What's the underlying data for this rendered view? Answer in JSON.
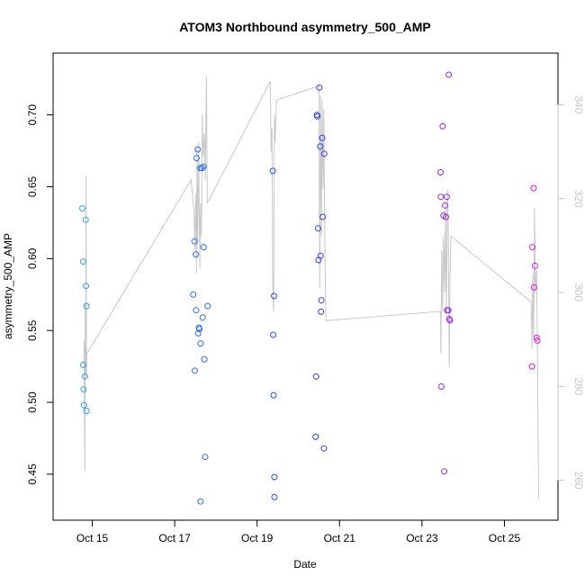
{
  "chart_data": {
    "type": "scatter",
    "title": "ATOM3 Northbound asymmetry_500_AMP",
    "xlabel": "Date",
    "ylabel": "asymmetry_500_AMP",
    "x_ticks": [
      {
        "day": 15,
        "label": "Oct 15"
      },
      {
        "day": 17,
        "label": "Oct 17"
      },
      {
        "day": 19,
        "label": "Oct 19"
      },
      {
        "day": 21,
        "label": "Oct 21"
      },
      {
        "day": 23,
        "label": "Oct 23"
      },
      {
        "day": 25,
        "label": "Oct 25"
      }
    ],
    "xlim": [
      14.05,
      26.3
    ],
    "ylim": [
      0.418,
      0.743
    ],
    "y_ticks": [
      "0.45",
      "0.50",
      "0.55",
      "0.60",
      "0.65",
      "0.70"
    ],
    "y2lim": [
      251.5,
      351
    ],
    "y2_ticks": [
      "260",
      "280",
      "300",
      "320",
      "340"
    ],
    "points": [
      {
        "x": 14.76,
        "y": 0.635
      },
      {
        "x": 14.78,
        "y": 0.598
      },
      {
        "x": 14.78,
        "y": 0.526
      },
      {
        "x": 14.79,
        "y": 0.509
      },
      {
        "x": 14.8,
        "y": 0.498
      },
      {
        "x": 14.82,
        "y": 0.518
      },
      {
        "x": 14.84,
        "y": 0.627
      },
      {
        "x": 14.85,
        "y": 0.581
      },
      {
        "x": 14.86,
        "y": 0.567
      },
      {
        "x": 14.86,
        "y": 0.494
      },
      {
        "x": 17.45,
        "y": 0.575
      },
      {
        "x": 17.48,
        "y": 0.612
      },
      {
        "x": 17.49,
        "y": 0.522
      },
      {
        "x": 17.51,
        "y": 0.603
      },
      {
        "x": 17.53,
        "y": 0.67
      },
      {
        "x": 17.52,
        "y": 0.564
      },
      {
        "x": 17.56,
        "y": 0.676
      },
      {
        "x": 17.57,
        "y": 0.548
      },
      {
        "x": 17.59,
        "y": 0.552
      },
      {
        "x": 17.6,
        "y": 0.551
      },
      {
        "x": 17.62,
        "y": 0.663
      },
      {
        "x": 17.63,
        "y": 0.541
      },
      {
        "x": 17.63,
        "y": 0.431
      },
      {
        "x": 17.66,
        "y": 0.663
      },
      {
        "x": 17.68,
        "y": 0.559
      },
      {
        "x": 17.7,
        "y": 0.608
      },
      {
        "x": 17.7,
        "y": 0.664
      },
      {
        "x": 17.72,
        "y": 0.53
      },
      {
        "x": 17.74,
        "y": 0.462
      },
      {
        "x": 17.8,
        "y": 0.567
      },
      {
        "x": 19.38,
        "y": 0.661
      },
      {
        "x": 19.39,
        "y": 0.547
      },
      {
        "x": 19.4,
        "y": 0.505
      },
      {
        "x": 19.41,
        "y": 0.574
      },
      {
        "x": 19.42,
        "y": 0.448
      },
      {
        "x": 19.42,
        "y": 0.434
      },
      {
        "x": 20.42,
        "y": 0.476
      },
      {
        "x": 20.43,
        "y": 0.518
      },
      {
        "x": 20.45,
        "y": 0.7
      },
      {
        "x": 20.46,
        "y": 0.699
      },
      {
        "x": 20.48,
        "y": 0.621
      },
      {
        "x": 20.49,
        "y": 0.599
      },
      {
        "x": 20.51,
        "y": 0.719
      },
      {
        "x": 20.53,
        "y": 0.678
      },
      {
        "x": 20.54,
        "y": 0.602
      },
      {
        "x": 20.55,
        "y": 0.563
      },
      {
        "x": 20.56,
        "y": 0.571
      },
      {
        "x": 20.58,
        "y": 0.684
      },
      {
        "x": 20.59,
        "y": 0.629
      },
      {
        "x": 20.63,
        "y": 0.673
      },
      {
        "x": 20.62,
        "y": 0.468
      },
      {
        "x": 23.45,
        "y": 0.66
      },
      {
        "x": 23.46,
        "y": 0.643
      },
      {
        "x": 23.47,
        "y": 0.511
      },
      {
        "x": 23.5,
        "y": 0.692
      },
      {
        "x": 23.52,
        "y": 0.63
      },
      {
        "x": 23.54,
        "y": 0.452
      },
      {
        "x": 23.56,
        "y": 0.637
      },
      {
        "x": 23.58,
        "y": 0.629
      },
      {
        "x": 23.6,
        "y": 0.643
      },
      {
        "x": 23.61,
        "y": 0.564
      },
      {
        "x": 23.64,
        "y": 0.564
      },
      {
        "x": 23.65,
        "y": 0.728
      },
      {
        "x": 23.66,
        "y": 0.558
      },
      {
        "x": 23.68,
        "y": 0.557
      },
      {
        "x": 25.67,
        "y": 0.525
      },
      {
        "x": 25.68,
        "y": 0.608
      },
      {
        "x": 25.71,
        "y": 0.649
      },
      {
        "x": 25.72,
        "y": 0.58
      },
      {
        "x": 25.74,
        "y": 0.595
      },
      {
        "x": 25.78,
        "y": 0.545
      },
      {
        "x": 25.8,
        "y": 0.543
      }
    ],
    "secondary_series_y2": [
      [
        14.82,
        282
      ],
      [
        14.8,
        290
      ],
      [
        14.82,
        262
      ],
      [
        14.83,
        298
      ],
      [
        14.84,
        282
      ],
      [
        14.85,
        325
      ],
      [
        14.86,
        282
      ],
      [
        14.87,
        287
      ],
      [
        17.4,
        324
      ],
      [
        17.47,
        317
      ],
      [
        17.49,
        309
      ],
      [
        17.51,
        321
      ],
      [
        17.53,
        304
      ],
      [
        17.54,
        331
      ],
      [
        17.56,
        310
      ],
      [
        17.58,
        332
      ],
      [
        17.61,
        305
      ],
      [
        17.63,
        319
      ],
      [
        17.65,
        312
      ],
      [
        17.67,
        338
      ],
      [
        17.69,
        329
      ],
      [
        17.72,
        334
      ],
      [
        17.74,
        324
      ],
      [
        17.77,
        346
      ],
      [
        17.79,
        319
      ],
      [
        19.32,
        345
      ],
      [
        19.34,
        330
      ],
      [
        19.36,
        335
      ],
      [
        19.38,
        300
      ],
      [
        19.4,
        296
      ],
      [
        19.42,
        338
      ],
      [
        19.44,
        332
      ],
      [
        19.47,
        341
      ],
      [
        20.5,
        344
      ],
      [
        20.52,
        301
      ],
      [
        20.54,
        342
      ],
      [
        20.56,
        312
      ],
      [
        20.58,
        341
      ],
      [
        20.6,
        322
      ],
      [
        20.62,
        339
      ],
      [
        20.64,
        312
      ],
      [
        20.67,
        294
      ],
      [
        23.45,
        296
      ],
      [
        23.46,
        287
      ],
      [
        23.48,
        309
      ],
      [
        23.5,
        296
      ],
      [
        23.52,
        312
      ],
      [
        23.55,
        300
      ],
      [
        23.57,
        319
      ],
      [
        23.59,
        296
      ],
      [
        23.62,
        322
      ],
      [
        23.64,
        312
      ],
      [
        23.66,
        284
      ],
      [
        23.68,
        302
      ],
      [
        23.7,
        312
      ],
      [
        25.65,
        298
      ],
      [
        25.67,
        288
      ],
      [
        25.69,
        304
      ],
      [
        25.71,
        290
      ],
      [
        25.73,
        318
      ],
      [
        25.75,
        300
      ],
      [
        25.78,
        305
      ],
      [
        25.8,
        289
      ],
      [
        25.83,
        256
      ]
    ],
    "colors": {
      "series_start": "#2ea3e6",
      "series_mid": "#2a3fe6",
      "series_end": "#e018e0",
      "secondary_line": "#c8c8c8",
      "right_axis": "#c8c8c8"
    }
  }
}
